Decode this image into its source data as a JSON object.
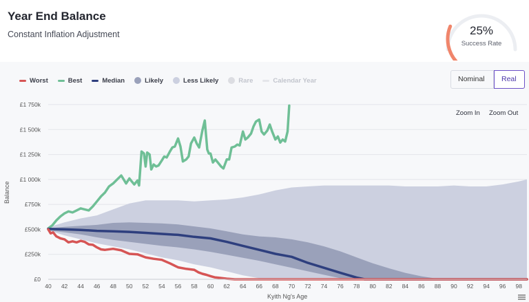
{
  "header": {
    "title": "Year End Balance",
    "subtitle": "Constant Inflation Adjustment",
    "gauge_value": "25%",
    "gauge_label": "Success Rate",
    "gauge_fraction": 0.25
  },
  "legend": [
    {
      "label": "Worst",
      "kind": "line",
      "color": "#d65555",
      "dim": false
    },
    {
      "label": "Best",
      "kind": "line",
      "color": "#6fbf96",
      "dim": false
    },
    {
      "label": "Median",
      "kind": "line",
      "color": "#2e3f7e",
      "dim": false
    },
    {
      "label": "Likely",
      "kind": "dot",
      "color": "#9aa1ba",
      "dim": false
    },
    {
      "label": "Less Likely",
      "kind": "dot",
      "color": "#ccd0e0",
      "dim": false
    },
    {
      "label": "Rare",
      "kind": "dot",
      "color": "#dcdde2",
      "dim": true
    },
    {
      "label": "Calendar Year",
      "kind": "line",
      "color": "#e4e5ea",
      "dim": true
    }
  ],
  "toggle": {
    "nominal": "Nominal",
    "real": "Real"
  },
  "zoom": {
    "in": "Zoom In",
    "out": "Zoom Out"
  },
  "chart_data": {
    "type": "line",
    "xlabel": "Kyith Ng's Age",
    "ylabel": "Balance",
    "xlim": [
      40,
      99
    ],
    "ylim": [
      0,
      1750000
    ],
    "x_ticks": [
      "40",
      "42",
      "44",
      "46",
      "48",
      "50",
      "52",
      "54",
      "56",
      "58",
      "60",
      "62",
      "64",
      "66",
      "68",
      "70",
      "72",
      "74",
      "76",
      "78",
      "80",
      "82",
      "84",
      "86",
      "88",
      "90",
      "92",
      "94",
      "96",
      "98"
    ],
    "y_ticks": [
      {
        "value": 0,
        "label": "£0"
      },
      {
        "value": 250000,
        "label": "£250k"
      },
      {
        "value": 500000,
        "label": "£500k"
      },
      {
        "value": 750000,
        "label": "£750k"
      },
      {
        "value": 1000000,
        "label": "£1 000k"
      },
      {
        "value": 1250000,
        "label": "£1 250k"
      },
      {
        "value": 1500000,
        "label": "£1 500k"
      },
      {
        "value": 1750000,
        "label": "£1 750k"
      }
    ],
    "grid": true,
    "bands": [
      {
        "name": "Less Likely",
        "color": "#ccd0e0",
        "x": [
          40,
          42,
          44,
          46,
          48,
          50,
          52,
          54,
          56,
          58,
          60,
          62,
          64,
          66,
          68,
          70,
          72,
          74,
          76,
          78,
          80,
          82,
          84,
          86,
          88,
          90,
          92,
          94,
          96,
          98,
          99
        ],
        "upper": [
          520000,
          570000,
          610000,
          640000,
          700000,
          760000,
          790000,
          790000,
          790000,
          780000,
          790000,
          800000,
          820000,
          850000,
          890000,
          920000,
          930000,
          940000,
          940000,
          940000,
          940000,
          940000,
          930000,
          930000,
          930000,
          940000,
          930000,
          930000,
          950000,
          980000,
          1000000
        ],
        "lower": [
          490000,
          440000,
          400000,
          360000,
          330000,
          300000,
          260000,
          220000,
          190000,
          150000,
          120000,
          80000,
          40000,
          10000,
          0,
          0,
          0,
          0,
          0,
          0,
          0,
          0,
          0,
          0,
          0,
          0,
          0,
          0,
          0,
          0,
          0
        ]
      },
      {
        "name": "Likely",
        "color": "#9aa1ba",
        "x": [
          40,
          42,
          44,
          46,
          48,
          50,
          52,
          54,
          56,
          58,
          60,
          62,
          64,
          66,
          68,
          70,
          72,
          74,
          76,
          78,
          80,
          82,
          84,
          86,
          88,
          90,
          92,
          94,
          96,
          98,
          99
        ],
        "upper": [
          510000,
          525000,
          535000,
          545000,
          565000,
          570000,
          565000,
          560000,
          550000,
          530000,
          510000,
          480000,
          450000,
          430000,
          420000,
          400000,
          370000,
          330000,
          280000,
          220000,
          160000,
          110000,
          65000,
          30000,
          5000,
          0,
          0,
          0,
          0,
          0,
          0
        ],
        "lower": [
          490000,
          470000,
          450000,
          420000,
          395000,
          375000,
          355000,
          335000,
          320000,
          300000,
          275000,
          245000,
          215000,
          185000,
          150000,
          115000,
          80000,
          45000,
          10000,
          0,
          0,
          0,
          0,
          0,
          0,
          0,
          0,
          0,
          0,
          0,
          0
        ]
      }
    ],
    "series": [
      {
        "name": "Best",
        "color": "#6fbf96",
        "x": [
          40,
          40.5,
          41,
          41.5,
          42,
          42.5,
          43,
          43.5,
          44,
          44.5,
          45,
          45.5,
          46,
          46.5,
          47,
          47.5,
          48,
          48.5,
          49,
          49.3,
          49.6,
          50,
          50.3,
          50.6,
          51,
          51.2,
          51.5,
          51.8,
          52,
          52.2,
          52.5,
          52.7,
          53,
          53.3,
          53.6,
          54,
          54.3,
          54.6,
          55,
          55.3,
          55.6,
          56,
          56.3,
          56.6,
          57,
          57.3,
          57.6,
          58,
          58.3,
          58.6,
          59,
          59.3,
          59.6,
          59.8,
          60,
          60.3,
          60.6,
          61,
          61.3,
          61.6,
          62,
          62.3,
          62.6,
          63,
          63.3,
          63.6,
          64,
          64.3,
          64.6,
          65,
          65.3,
          65.6,
          66,
          66.3,
          66.6,
          67,
          67.3,
          67.6,
          68,
          68.3,
          68.6,
          68.9,
          69.2,
          69.5,
          69.7
        ],
        "y": [
          510000,
          540000,
          590000,
          630000,
          660000,
          680000,
          670000,
          690000,
          710000,
          700000,
          690000,
          730000,
          780000,
          830000,
          870000,
          930000,
          960000,
          1000000,
          1040000,
          1000000,
          960000,
          1010000,
          980000,
          950000,
          990000,
          940000,
          1280000,
          1260000,
          1130000,
          1270000,
          1250000,
          1100000,
          1150000,
          1130000,
          1140000,
          1190000,
          1230000,
          1220000,
          1280000,
          1320000,
          1330000,
          1410000,
          1330000,
          1180000,
          1200000,
          1230000,
          1360000,
          1420000,
          1360000,
          1320000,
          1490000,
          1590000,
          1300000,
          1260000,
          1260000,
          1170000,
          1200000,
          1160000,
          1130000,
          1110000,
          1200000,
          1200000,
          1320000,
          1330000,
          1350000,
          1340000,
          1480000,
          1400000,
          1420000,
          1460000,
          1530000,
          1580000,
          1600000,
          1480000,
          1450000,
          1490000,
          1550000,
          1480000,
          1400000,
          1430000,
          1370000,
          1400000,
          1380000,
          1480000,
          1740000
        ]
      },
      {
        "name": "Median",
        "color": "#2e3f7e",
        "x": [
          40,
          42,
          44,
          46,
          48,
          50,
          52,
          54,
          56,
          58,
          60,
          62,
          64,
          66,
          68,
          70,
          72,
          74,
          76,
          78,
          79,
          80,
          99
        ],
        "y": [
          505000,
          500000,
          495000,
          485000,
          480000,
          475000,
          465000,
          455000,
          445000,
          425000,
          410000,
          375000,
          335000,
          295000,
          255000,
          225000,
          165000,
          115000,
          65000,
          18000,
          0,
          0,
          0
        ]
      },
      {
        "name": "Worst",
        "color": "#d65555",
        "x": [
          40,
          40.3,
          40.6,
          41,
          41.5,
          42,
          42.5,
          43,
          43.5,
          44,
          44.5,
          45,
          45.5,
          46,
          46.5,
          47,
          48,
          49,
          50,
          51,
          52,
          53,
          54,
          55,
          56,
          57,
          58,
          58.5,
          59,
          59.5,
          60,
          60.5,
          61,
          62,
          63,
          64,
          65,
          66,
          67,
          68,
          69,
          70,
          72,
          74,
          76,
          78,
          80,
          84,
          88,
          92,
          96,
          99
        ],
        "y": [
          500000,
          460000,
          470000,
          430000,
          410000,
          400000,
          370000,
          380000,
          370000,
          385000,
          375000,
          350000,
          345000,
          320000,
          300000,
          295000,
          305000,
          290000,
          255000,
          250000,
          220000,
          205000,
          195000,
          160000,
          120000,
          105000,
          95000,
          70000,
          55000,
          45000,
          32000,
          20000,
          15000,
          6000,
          0,
          0,
          0,
          0,
          0,
          0,
          0,
          0,
          0,
          0,
          0,
          0,
          0,
          0,
          0,
          0,
          0,
          0
        ]
      }
    ]
  }
}
